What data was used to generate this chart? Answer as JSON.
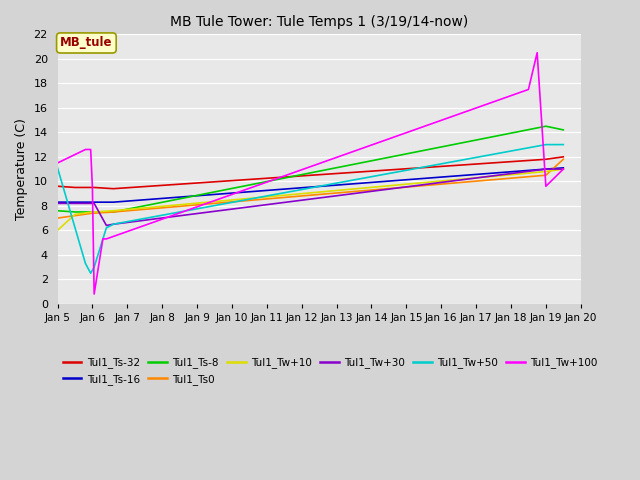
{
  "title": "MB Tule Tower: Tule Temps 1 (3/19/14-now)",
  "ylabel": "Temperature (C)",
  "xlim": [
    0,
    15
  ],
  "ylim": [
    0,
    22
  ],
  "x_tick_labels": [
    "Jan 5",
    "Jan 6",
    "Jan 7",
    "Jan 8",
    "Jan 9",
    "Jan 10",
    "Jan 11",
    "Jan 12",
    "Jan 13",
    "Jan 14",
    "Jan 15",
    "Jan 16",
    "Jan 17",
    "Jan 18",
    "Jan 19",
    "Jan 20"
  ],
  "x_tick_positions": [
    0,
    1,
    2,
    3,
    4,
    5,
    6,
    7,
    8,
    9,
    10,
    11,
    12,
    13,
    14,
    15
  ],
  "series": {
    "Tul1_Ts-32": {
      "color": "#dd0000",
      "x": [
        0,
        0.5,
        1.0,
        1.05,
        1.6,
        14.0,
        14.5
      ],
      "y": [
        9.6,
        9.5,
        9.5,
        9.5,
        9.4,
        11.8,
        12.0
      ]
    },
    "Tul1_Ts-16": {
      "color": "#0000cc",
      "x": [
        0,
        0.5,
        1.0,
        1.05,
        1.6,
        14.0,
        14.5
      ],
      "y": [
        8.3,
        8.3,
        8.3,
        8.3,
        8.3,
        11.0,
        11.1
      ]
    },
    "Tul1_Ts-8": {
      "color": "#00cc00",
      "x": [
        0,
        0.5,
        1.0,
        1.05,
        1.6,
        14.0,
        14.5
      ],
      "y": [
        7.6,
        7.5,
        7.5,
        7.5,
        7.5,
        14.5,
        14.2
      ]
    },
    "Tul1_Ts0": {
      "color": "#ff8800",
      "x": [
        0,
        0.5,
        1.0,
        1.05,
        1.6,
        14.0,
        14.5
      ],
      "y": [
        7.0,
        7.2,
        7.4,
        7.4,
        7.5,
        10.5,
        11.8
      ]
    },
    "Tul1_Tw+10": {
      "color": "#dddd00",
      "x": [
        0,
        0.5,
        1.0,
        1.05,
        1.6,
        14.0,
        14.5
      ],
      "y": [
        6.0,
        7.3,
        7.5,
        7.5,
        7.6,
        10.8,
        11.0
      ]
    },
    "Tul1_Tw+30": {
      "color": "#8800cc",
      "x": [
        0,
        0.5,
        1.0,
        1.05,
        1.4,
        1.6,
        14.0,
        14.5
      ],
      "y": [
        8.2,
        8.2,
        8.2,
        8.2,
        6.4,
        6.5,
        11.0,
        11.0
      ]
    },
    "Tul1_Tw+50": {
      "color": "#00cccc",
      "x": [
        0,
        0.8,
        0.95,
        1.05,
        1.4,
        1.6,
        14.0,
        14.5
      ],
      "y": [
        11.1,
        3.3,
        2.5,
        3.0,
        6.2,
        6.5,
        13.0,
        13.0
      ]
    },
    "Tul1_Tw+100": {
      "color": "#ff00ff",
      "x": [
        0,
        0.8,
        0.95,
        1.0,
        1.05,
        1.3,
        1.4,
        13.5,
        13.75,
        14.0,
        14.5
      ],
      "y": [
        11.5,
        12.6,
        12.6,
        9.5,
        0.8,
        5.3,
        5.3,
        17.5,
        20.5,
        9.6,
        11.0
      ]
    }
  },
  "legend_label": "MB_tule",
  "legend_box_color": "#ffffcc",
  "legend_text_color": "#990000",
  "legend_border_color": "#999900",
  "legend_order": [
    "Tul1_Ts-32",
    "Tul1_Ts-16",
    "Tul1_Ts-8",
    "Tul1_Ts0",
    "Tul1_Tw+10",
    "Tul1_Tw+30",
    "Tul1_Tw+50",
    "Tul1_Tw+100"
  ]
}
